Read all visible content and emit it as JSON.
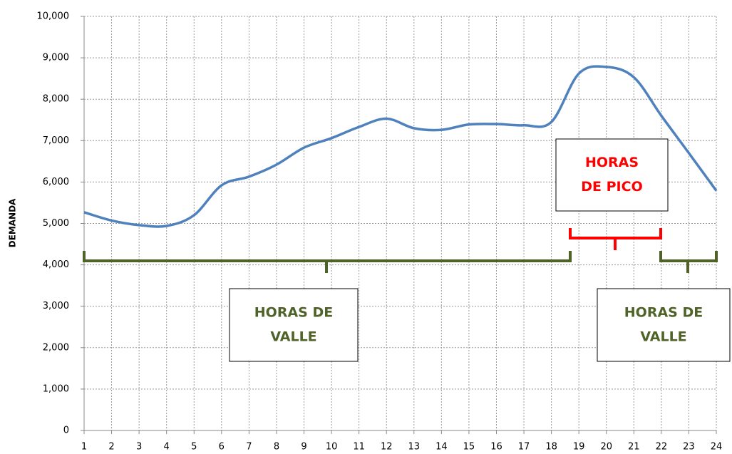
{
  "chart_data": {
    "type": "line",
    "y_label": "DEMANDA",
    "x": [
      1,
      2,
      3,
      4,
      5,
      6,
      7,
      8,
      9,
      10,
      11,
      12,
      13,
      14,
      15,
      16,
      17,
      18,
      19,
      20,
      21,
      22,
      23,
      24
    ],
    "series": [
      {
        "name": "Demanda",
        "color": "#4f81bd",
        "values": [
          5270,
          5070,
          4960,
          4940,
          5200,
          5920,
          6130,
          6420,
          6830,
          7060,
          7330,
          7530,
          7300,
          7260,
          7390,
          7400,
          7370,
          7450,
          8620,
          8780,
          8530,
          7600,
          6700,
          5790
        ]
      }
    ],
    "xlim": [
      1,
      24
    ],
    "xticks": [
      1,
      2,
      3,
      4,
      5,
      6,
      7,
      8,
      9,
      10,
      11,
      12,
      13,
      14,
      15,
      16,
      17,
      18,
      19,
      20,
      21,
      22,
      23,
      24
    ],
    "ylim": [
      0,
      10000
    ],
    "yticks": [
      0,
      {
        "value": 1000,
        "label": "1,000"
      },
      {
        "value": 2000,
        "label": "2,000"
      },
      {
        "value": 3000,
        "label": "3,000"
      },
      {
        "value": 4000,
        "label": "4,000"
      },
      {
        "value": 5000,
        "label": "5,000"
      },
      {
        "value": 6000,
        "label": "6,000"
      },
      {
        "value": 7000,
        "label": "7,000"
      },
      {
        "value": 8000,
        "label": "8,000"
      },
      {
        "value": 9000,
        "label": "9,000"
      },
      {
        "value": 10000,
        "label": "10,000"
      }
    ],
    "grid": true,
    "annotations": [
      {
        "lines": [
          "HORAS DE",
          "VALLE"
        ],
        "color": "#4f6228"
      },
      {
        "lines": [
          "HORAS",
          "DE PICO"
        ],
        "color": "#ff0000"
      },
      {
        "lines": [
          "HORAS DE",
          "VALLE"
        ],
        "color": "#4f6228"
      }
    ]
  }
}
